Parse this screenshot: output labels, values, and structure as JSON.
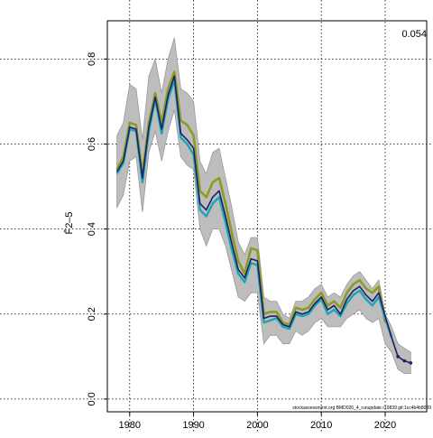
{
  "chart_data": {
    "type": "line",
    "corner_value": "0.054",
    "ylabel": "F̄2–5",
    "watermark": "stockassessment.org BMD026_4_runupdate r19839 git:1cc4b4b8089",
    "x_ticks": [
      1980,
      1990,
      2000,
      2010,
      2020
    ],
    "y_ticks": [
      "0.0",
      "0.2",
      "0.4",
      "0.6",
      "0.8"
    ],
    "xlim": [
      1976.5,
      2026.5
    ],
    "ylim": [
      -0.03,
      0.89
    ],
    "grid": true,
    "colors": {
      "band": "#bdbdbd",
      "band_edge": "#9a9a9a",
      "olive": "#8f9a22",
      "teal": "#1aa6b7",
      "navy": "#1c1e6b",
      "grid": "#000000"
    },
    "band": {
      "x": [
        1978,
        1979,
        1980,
        1981,
        1982,
        1983,
        1984,
        1985,
        1986,
        1987,
        1988,
        1989,
        1990,
        1991,
        1992,
        1993,
        1994,
        1995,
        1996,
        1997,
        1998,
        1999,
        2000,
        2001,
        2002,
        2003,
        2004,
        2005,
        2006,
        2007,
        2008,
        2009,
        2010,
        2011,
        2012,
        2013,
        2014,
        2015,
        2016,
        2017,
        2018,
        2019,
        2020,
        2021,
        2022,
        2023,
        2024
      ],
      "upper": [
        0.62,
        0.65,
        0.74,
        0.73,
        0.61,
        0.76,
        0.8,
        0.72,
        0.8,
        0.85,
        0.73,
        0.72,
        0.7,
        0.56,
        0.53,
        0.58,
        0.59,
        0.52,
        0.45,
        0.37,
        0.34,
        0.38,
        0.38,
        0.24,
        0.23,
        0.23,
        0.2,
        0.19,
        0.23,
        0.23,
        0.24,
        0.26,
        0.27,
        0.24,
        0.25,
        0.24,
        0.27,
        0.29,
        0.3,
        0.28,
        0.26,
        0.28,
        0.2,
        0.17,
        0.13,
        0.12,
        0.11
      ],
      "lower": [
        0.45,
        0.48,
        0.56,
        0.57,
        0.44,
        0.58,
        0.63,
        0.56,
        0.63,
        0.68,
        0.57,
        0.55,
        0.54,
        0.4,
        0.36,
        0.4,
        0.4,
        0.36,
        0.3,
        0.24,
        0.23,
        0.25,
        0.25,
        0.13,
        0.15,
        0.15,
        0.13,
        0.13,
        0.16,
        0.15,
        0.16,
        0.18,
        0.19,
        0.17,
        0.17,
        0.17,
        0.19,
        0.2,
        0.21,
        0.19,
        0.18,
        0.19,
        0.13,
        0.11,
        0.07,
        0.06,
        0.06
      ]
    },
    "series": [
      {
        "color_key": "olive",
        "x": [
          1978,
          1979,
          1980,
          1981,
          1982,
          1983,
          1984,
          1985,
          1986,
          1987,
          1988,
          1989,
          1990,
          1991,
          1992,
          1993,
          1994,
          1995,
          1996,
          1997,
          1998,
          1999,
          2000,
          2001,
          2002,
          2003,
          2004,
          2005,
          2006,
          2007,
          2008,
          2009,
          2010,
          2011,
          2012,
          2013,
          2014,
          2015,
          2016,
          2017,
          2018,
          2019,
          2020
        ],
        "values": [
          0.54,
          0.57,
          0.65,
          0.645,
          0.53,
          0.65,
          0.72,
          0.65,
          0.73,
          0.77,
          0.655,
          0.645,
          0.62,
          0.49,
          0.475,
          0.51,
          0.52,
          0.46,
          0.39,
          0.325,
          0.295,
          0.355,
          0.35,
          0.2,
          0.205,
          0.205,
          0.18,
          0.175,
          0.215,
          0.21,
          0.215,
          0.235,
          0.25,
          0.22,
          0.23,
          0.215,
          0.25,
          0.27,
          0.28,
          0.26,
          0.25,
          0.265,
          0.18
        ]
      },
      {
        "color_key": "teal",
        "x": [
          1978,
          1979,
          1980,
          1981,
          1982,
          1983,
          1984,
          1985,
          1986,
          1987,
          1988,
          1989,
          1990,
          1991,
          1992,
          1993,
          1994,
          1995,
          1996,
          1997,
          1998,
          1999,
          2000,
          2001,
          2002,
          2003,
          2004,
          2005,
          2006,
          2007,
          2008,
          2009,
          2010,
          2011,
          2012,
          2013,
          2014,
          2015,
          2016,
          2017,
          2018,
          2019,
          2020,
          2021
        ],
        "values": [
          0.53,
          0.555,
          0.635,
          0.63,
          0.51,
          0.63,
          0.705,
          0.625,
          0.705,
          0.75,
          0.615,
          0.6,
          0.575,
          0.445,
          0.43,
          0.46,
          0.475,
          0.415,
          0.35,
          0.295,
          0.275,
          0.32,
          0.315,
          0.18,
          0.185,
          0.19,
          0.17,
          0.165,
          0.2,
          0.195,
          0.2,
          0.22,
          0.235,
          0.2,
          0.21,
          0.195,
          0.225,
          0.245,
          0.255,
          0.235,
          0.22,
          0.24,
          0.19,
          0.145
        ]
      },
      {
        "color_key": "navy",
        "x": [
          1978,
          1979,
          1980,
          1981,
          1982,
          1983,
          1984,
          1985,
          1986,
          1987,
          1988,
          1989,
          1990,
          1991,
          1992,
          1993,
          1994,
          1995,
          1996,
          1997,
          1998,
          1999,
          2000,
          2001,
          2002,
          2003,
          2004,
          2005,
          2006,
          2007,
          2008,
          2009,
          2010,
          2011,
          2012,
          2013,
          2014,
          2015,
          2016,
          2017,
          2018,
          2019,
          2020,
          2021,
          2022,
          2023,
          2024
        ],
        "values": [
          0.535,
          0.56,
          0.64,
          0.635,
          0.52,
          0.64,
          0.71,
          0.635,
          0.715,
          0.76,
          0.625,
          0.61,
          0.59,
          0.46,
          0.445,
          0.475,
          0.49,
          0.43,
          0.365,
          0.305,
          0.285,
          0.33,
          0.325,
          0.19,
          0.195,
          0.195,
          0.175,
          0.17,
          0.205,
          0.2,
          0.205,
          0.225,
          0.24,
          0.21,
          0.22,
          0.2,
          0.235,
          0.255,
          0.265,
          0.245,
          0.23,
          0.25,
          0.195,
          0.145,
          0.1,
          0.09,
          0.085
        ]
      }
    ]
  }
}
